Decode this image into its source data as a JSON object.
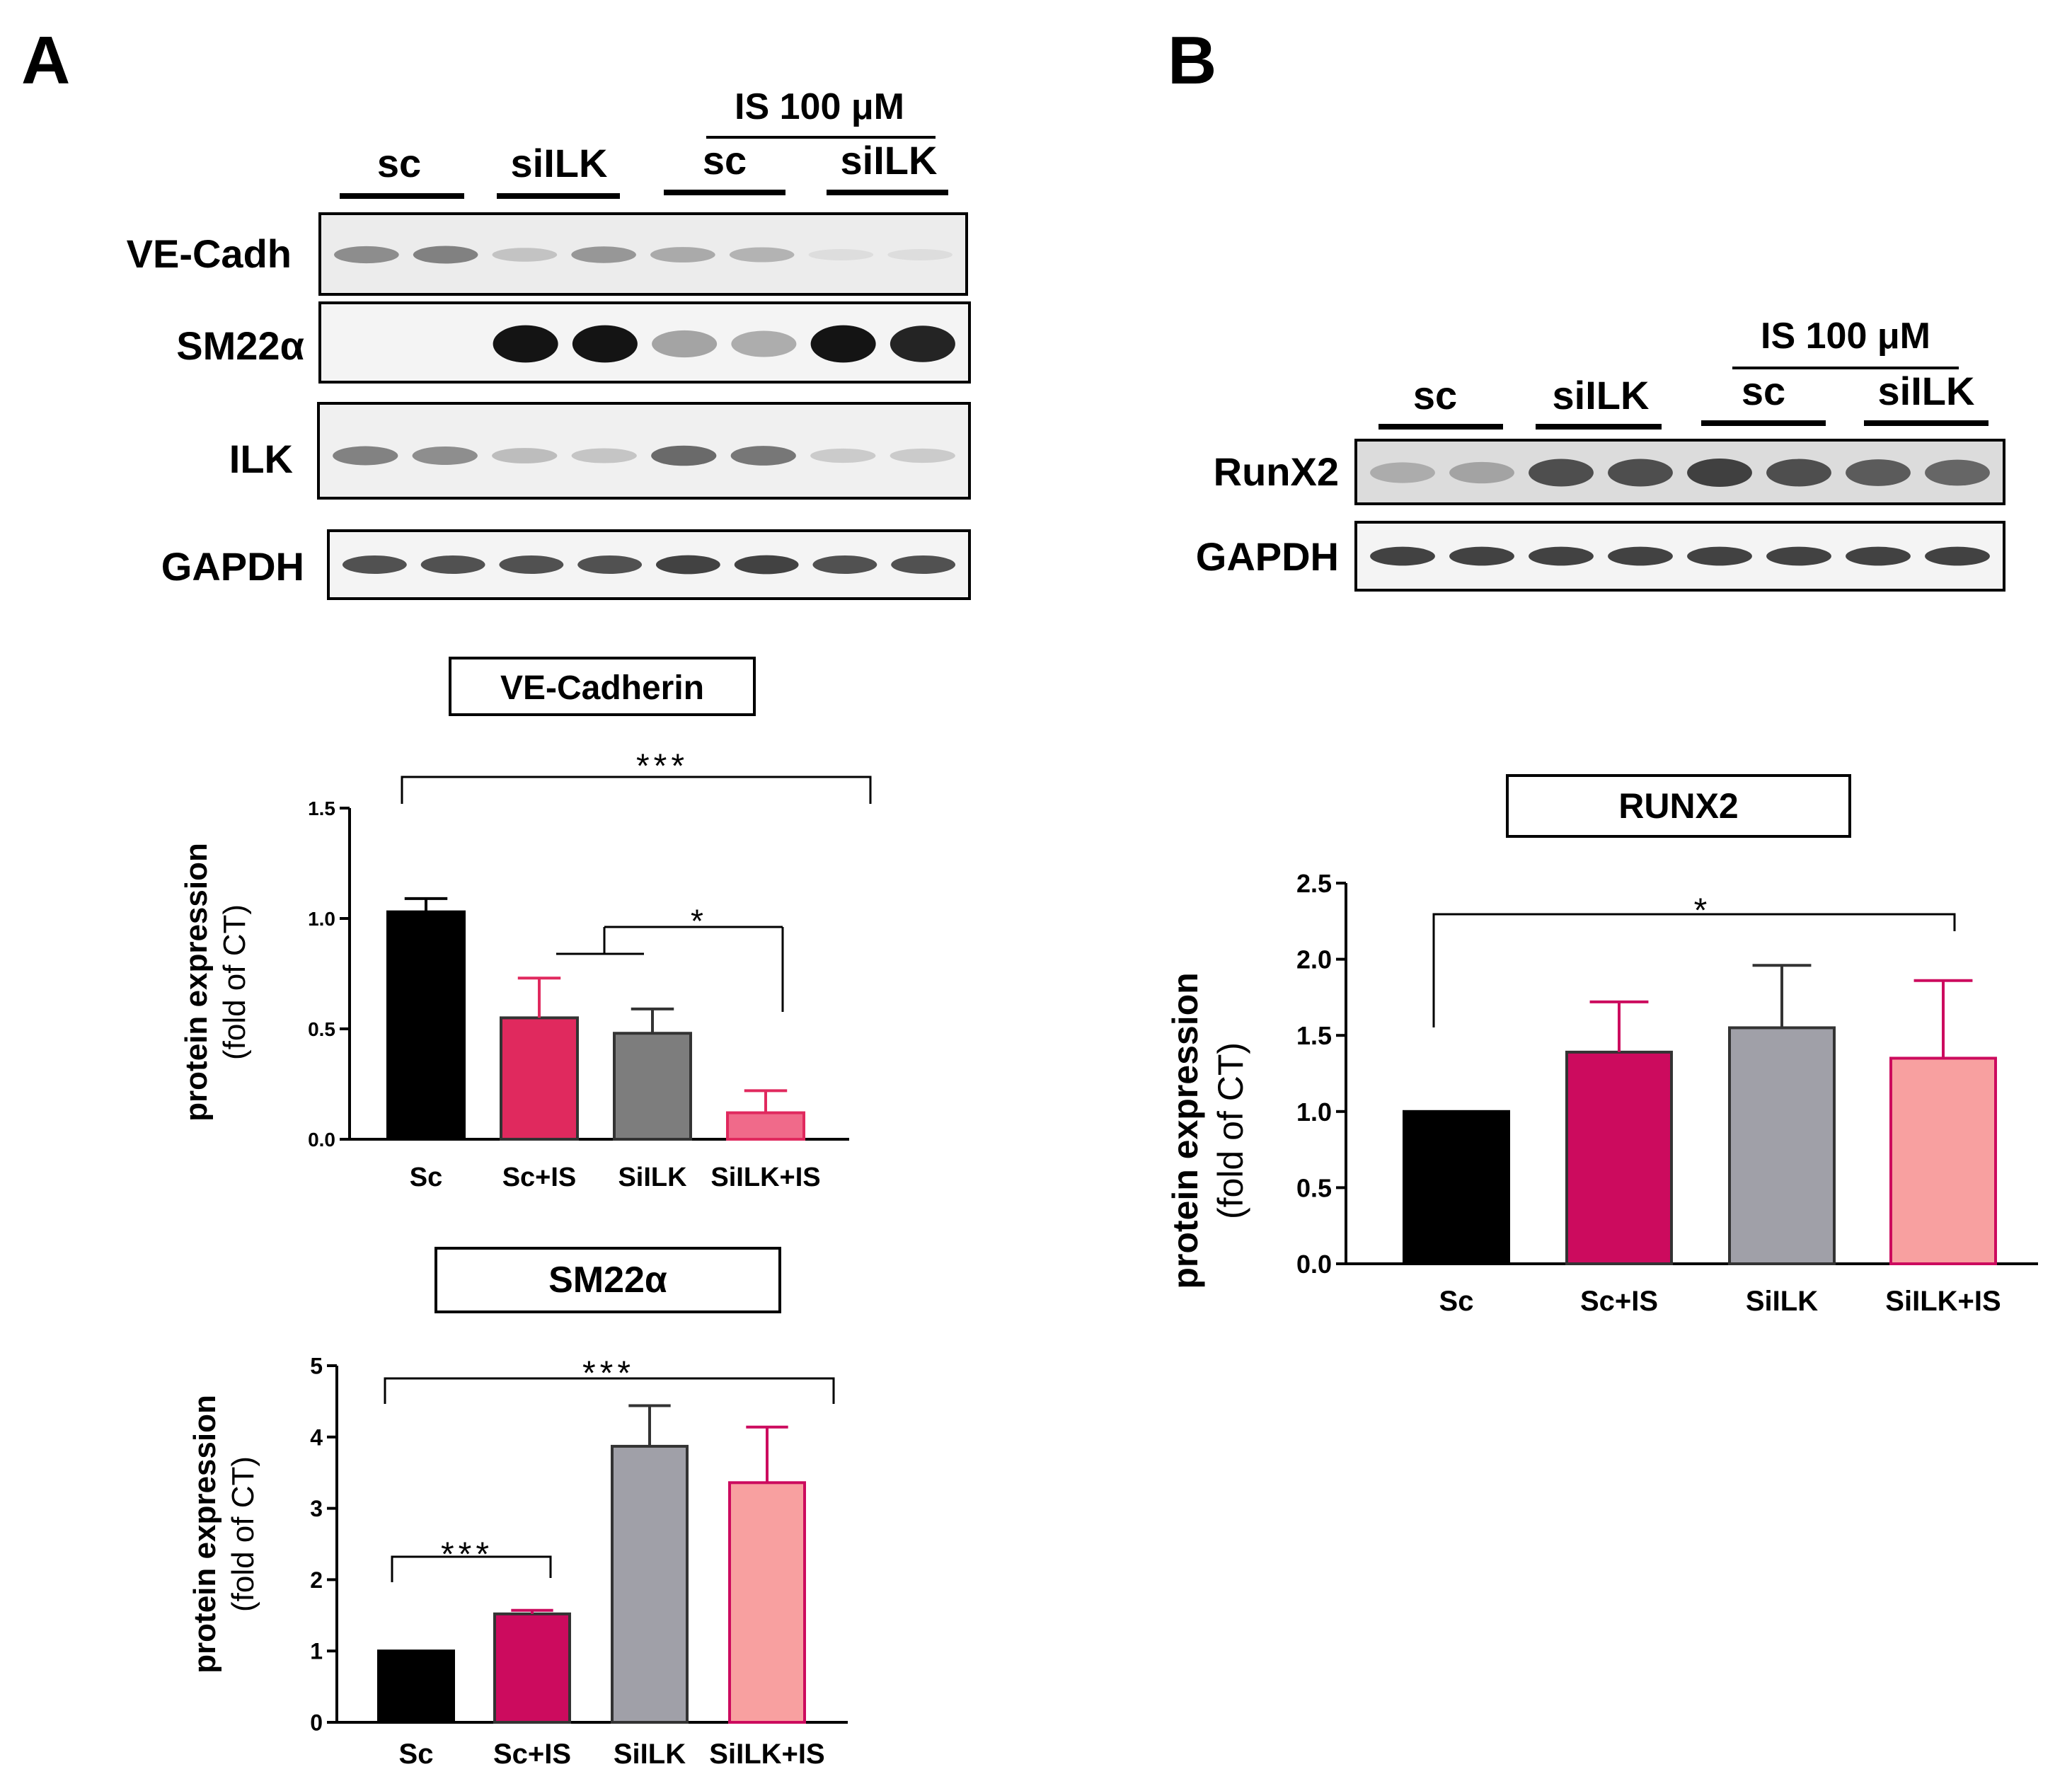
{
  "panels": {
    "A": {
      "label": "A",
      "blot": {
        "treatment_label": "IS 100 μM",
        "group_labels": [
          "sc",
          "siILK",
          "sc",
          "siILK"
        ],
        "rows": [
          {
            "name": "VE-Cadh",
            "intensities": [
              0.55,
              0.6,
              0.25,
              0.5,
              0.4,
              0.35,
              0.03,
              0.03
            ]
          },
          {
            "name": "SM22α",
            "intensities": [
              0.0,
              0.0,
              1.0,
              1.0,
              0.45,
              0.4,
              1.0,
              0.95
            ]
          },
          {
            "name": "ILK",
            "intensities": [
              0.6,
              0.55,
              0.3,
              0.25,
              0.7,
              0.65,
              0.2,
              0.2
            ]
          },
          {
            "name": "GAPDH",
            "intensities": [
              0.8,
              0.8,
              0.8,
              0.8,
              0.85,
              0.85,
              0.8,
              0.8
            ]
          }
        ]
      }
    },
    "B": {
      "label": "B",
      "blot": {
        "treatment_label": "IS 100 μM",
        "group_labels": [
          "sc",
          "siILK",
          "sc",
          "siILK"
        ],
        "rows": [
          {
            "name": "RunX2",
            "intensities": [
              0.35,
              0.4,
              0.8,
              0.8,
              0.85,
              0.8,
              0.75,
              0.7
            ]
          },
          {
            "name": "GAPDH",
            "intensities": [
              0.85,
              0.85,
              0.85,
              0.85,
              0.85,
              0.85,
              0.85,
              0.85
            ]
          }
        ]
      }
    }
  },
  "chart_data": [
    {
      "id": "ve_cadherin",
      "type": "bar",
      "title": "VE-Cadherin",
      "ylabel_line1": "protein expression",
      "ylabel_line2": "(fold of CT)",
      "categories": [
        "Sc",
        "Sc+IS",
        "SiILK",
        "SiILK+IS"
      ],
      "values": [
        1.03,
        0.55,
        0.48,
        0.12
      ],
      "errors": [
        0.06,
        0.18,
        0.11,
        0.1
      ],
      "colors": [
        "#000000",
        "#e0295e",
        "#7d7d7d",
        "#f06a8a"
      ],
      "ylim": [
        0,
        1.5
      ],
      "yticks": [
        "0.0",
        "0.5",
        "1.0",
        "1.5"
      ],
      "significance": [
        {
          "label": "***",
          "from": 0,
          "to": 3
        },
        {
          "label": "*",
          "from": "1-2",
          "to": 3
        }
      ]
    },
    {
      "id": "sm22",
      "type": "bar",
      "title": "SM22α",
      "ylabel_line1": "protein expression",
      "ylabel_line2": "(fold of CT)",
      "categories": [
        "Sc",
        "Sc+IS",
        "SiILK",
        "SiILK+IS"
      ],
      "values": [
        1.0,
        1.52,
        3.87,
        3.36
      ],
      "errors": [
        0.0,
        0.05,
        0.57,
        0.78
      ],
      "colors": [
        "#000000",
        "#cc0b5e",
        "#a0a0a8",
        "#f8a0a0"
      ],
      "ylim": [
        0,
        5
      ],
      "yticks": [
        "0",
        "1",
        "2",
        "3",
        "4",
        "5"
      ],
      "significance": [
        {
          "label": "***",
          "from": 0,
          "to": 3
        },
        {
          "label": "***",
          "from": 0,
          "to": 1
        }
      ]
    },
    {
      "id": "runx2",
      "type": "bar",
      "title": "RUNX2",
      "ylabel_line1": "protein expression",
      "ylabel_line2": "(fold of CT)",
      "categories": [
        "Sc",
        "Sc+IS",
        "SiILK",
        "SiILK+IS"
      ],
      "values": [
        1.0,
        1.39,
        1.55,
        1.35
      ],
      "errors": [
        0.0,
        0.33,
        0.41,
        0.51
      ],
      "colors": [
        "#000000",
        "#cc0b5e",
        "#a0a0a8",
        "#f8a0a0"
      ],
      "ylim": [
        0,
        2.5
      ],
      "yticks": [
        "0.0",
        "0.5",
        "1.0",
        "1.5",
        "2.0",
        "2.5"
      ],
      "significance": [
        {
          "label": "*",
          "from": 0,
          "to": 3
        }
      ]
    }
  ]
}
